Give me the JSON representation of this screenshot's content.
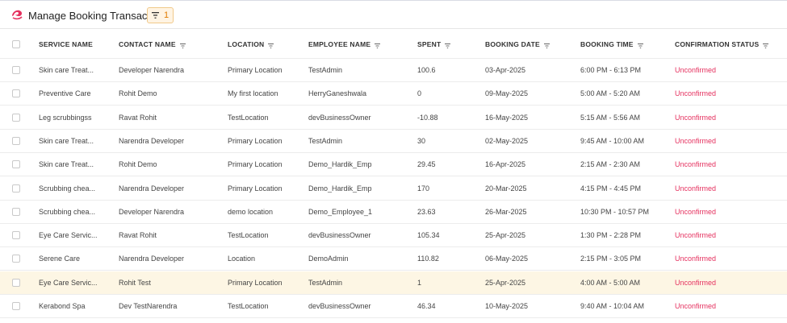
{
  "header": {
    "title": "Manage Booking Transactions",
    "filter_count": "1",
    "logo_icon": "brand-logo-icon",
    "accent_color": "#e5315f"
  },
  "table": {
    "columns": [
      "SERVICE NAME",
      "CONTACT NAME",
      "LOCATION",
      "EMPLOYEE NAME",
      "SPENT",
      "BOOKING DATE",
      "BOOKING TIME",
      "CONFIRMATION STATUS"
    ],
    "rows": [
      {
        "service": "Skin care Treat...",
        "contact": "Developer Narendra",
        "location": "Primary Location",
        "employee": "TestAdmin",
        "spent": "100.6",
        "date": "03-Apr-2025",
        "time": "6:00 PM - 6:13 PM",
        "status": "Unconfirmed"
      },
      {
        "service": "Preventive Care",
        "contact": "Rohit Demo",
        "location": "My first location",
        "employee": "HerryGaneshwala",
        "spent": "0",
        "date": "09-May-2025",
        "time": "5:00 AM - 5:20 AM",
        "status": "Unconfirmed"
      },
      {
        "service": "Leg scrubbingss",
        "contact": "Ravat Rohit",
        "location": "TestLocation",
        "employee": "devBusinessOwner",
        "spent": "-10.88",
        "date": "16-May-2025",
        "time": "5:15 AM - 5:56 AM",
        "status": "Unconfirmed"
      },
      {
        "service": "Skin care Treat...",
        "contact": "Narendra Developer",
        "location": "Primary Location",
        "employee": "TestAdmin",
        "spent": "30",
        "date": "02-May-2025",
        "time": "9:45 AM - 10:00 AM",
        "status": "Unconfirmed"
      },
      {
        "service": "Skin care Treat...",
        "contact": "Rohit Demo",
        "location": "Primary Location",
        "employee": "Demo_Hardik_Emp",
        "spent": "29.45",
        "date": "16-Apr-2025",
        "time": "2:15 AM - 2:30 AM",
        "status": "Unconfirmed"
      },
      {
        "service": "Scrubbing chea...",
        "contact": "Narendra Developer",
        "location": "Primary Location",
        "employee": "Demo_Hardik_Emp",
        "spent": "170",
        "date": "20-Mar-2025",
        "time": "4:15 PM - 4:45 PM",
        "status": "Unconfirmed"
      },
      {
        "service": "Scrubbing chea...",
        "contact": "Developer Narendra",
        "location": "demo location",
        "employee": "Demo_Employee_1",
        "spent": "23.63",
        "date": "26-Mar-2025",
        "time": "10:30 PM - 10:57 PM",
        "status": "Unconfirmed"
      },
      {
        "service": "Eye Care Servic...",
        "contact": "Ravat Rohit",
        "location": "TestLocation",
        "employee": "devBusinessOwner",
        "spent": "105.34",
        "date": "25-Apr-2025",
        "time": "1:30 PM - 2:28 PM",
        "status": "Unconfirmed"
      },
      {
        "service": "Serene Care",
        "contact": "Narendra Developer",
        "location": "Location",
        "employee": "DemoAdmin",
        "spent": "110.82",
        "date": "06-May-2025",
        "time": "2:15 PM - 3:05 PM",
        "status": "Unconfirmed"
      },
      {
        "service": "Eye Care Servic...",
        "contact": "Rohit Test",
        "location": "Primary Location",
        "employee": "TestAdmin",
        "spent": "1",
        "date": "25-Apr-2025",
        "time": "4:00 AM - 5:00 AM",
        "status": "Unconfirmed"
      },
      {
        "service": "Kerabond Spa",
        "contact": "Dev TestNarendra",
        "location": "TestLocation",
        "employee": "devBusinessOwner",
        "spent": "46.34",
        "date": "10-May-2025",
        "time": "9:40 AM - 10:04 AM",
        "status": "Unconfirmed"
      }
    ],
    "highlighted_row": 9
  }
}
